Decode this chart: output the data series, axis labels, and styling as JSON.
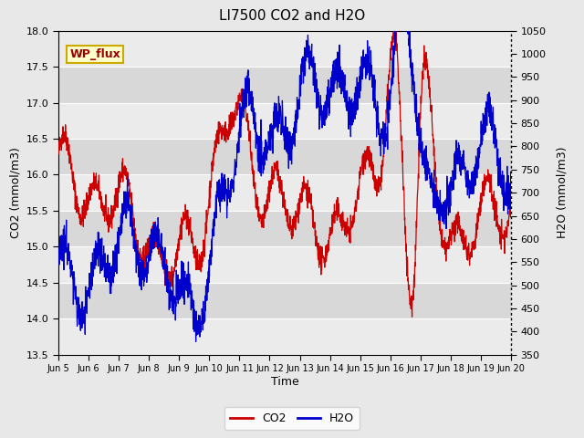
{
  "title": "LI7500 CO2 and H2O",
  "xlabel": "Time",
  "ylabel_left": "CO2 (mmol/m3)",
  "ylabel_right": "H2O (mmol/m3)",
  "annotation": "WP_flux",
  "co2_ylim": [
    13.5,
    18.0
  ],
  "h2o_ylim": [
    350,
    1050
  ],
  "co2_yticks": [
    13.5,
    14.0,
    14.5,
    15.0,
    15.5,
    16.0,
    16.5,
    17.0,
    17.5,
    18.0
  ],
  "h2o_yticks": [
    350,
    400,
    450,
    500,
    550,
    600,
    650,
    700,
    750,
    800,
    850,
    900,
    950,
    1000,
    1050
  ],
  "co2_color": "#cc0000",
  "h2o_color": "#0000cc",
  "bg_color": "#e8e8e8",
  "plot_bg_light": "#ebebeb",
  "plot_bg_dark": "#d8d8d8",
  "legend_co2": "CO2",
  "legend_h2o": "H2O",
  "annotation_text_color": "#990000",
  "annotation_bg": "#ffffcc",
  "annotation_edge": "#ccaa00",
  "x_tick_labels": [
    "Jun 5",
    "Jun 6",
    "Jun 7",
    "Jun 8",
    "Jun 9",
    "Jun 10",
    "Jun 11",
    "Jun 12",
    "Jun 13",
    "Jun 14",
    "Jun 15",
    "Jun 16",
    "Jun 17",
    "Jun 18",
    "Jun 19",
    "Jun 20"
  ],
  "seed": 42,
  "n_points": 2000
}
